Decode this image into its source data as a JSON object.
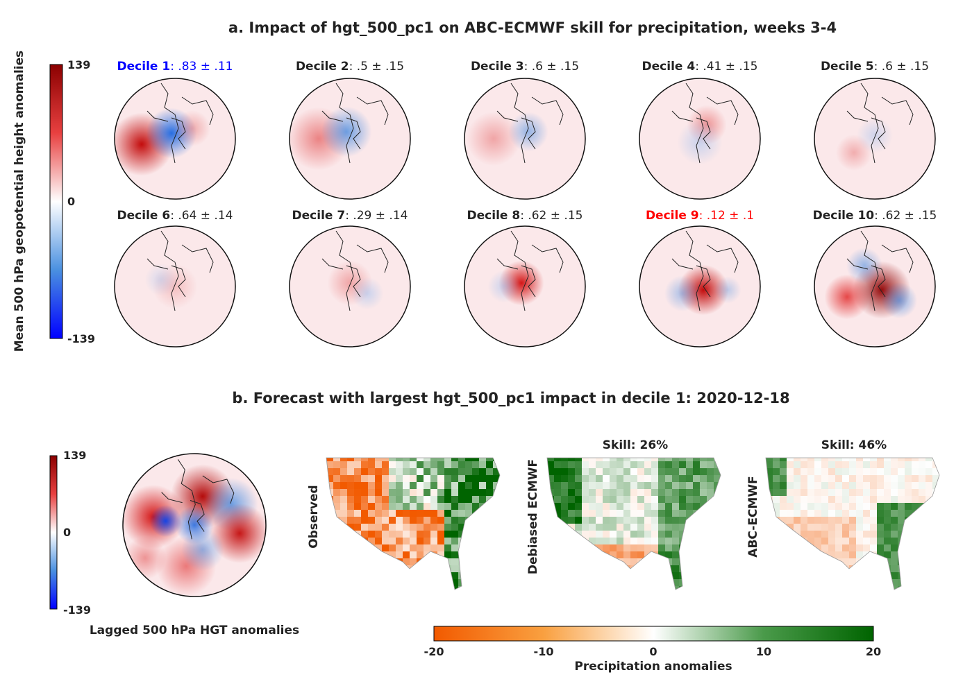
{
  "panel_a": {
    "title": "a. Impact of hgt_500_pc1 on ABC-ECMWF skill for precipitation, weeks 3-4",
    "colorbar": {
      "label": "Mean 500 hPa geopotential height anomalies",
      "ticks": [
        "139",
        "0",
        "-139"
      ]
    },
    "deciles": [
      {
        "name": "Decile 1",
        "value": ": .83 ± .11",
        "color": "#0000ff"
      },
      {
        "name": "Decile 2",
        "value": ": .5 ± .15",
        "color": "#222222"
      },
      {
        "name": "Decile 3",
        "value": ": .6 ± .15",
        "color": "#222222"
      },
      {
        "name": "Decile 4",
        "value": ": .41 ± .15",
        "color": "#222222"
      },
      {
        "name": "Decile 5",
        "value": ": .6 ± .15",
        "color": "#222222"
      },
      {
        "name": "Decile 6",
        "value": ": .64 ± .14",
        "color": "#222222"
      },
      {
        "name": "Decile 7",
        "value": ": .29 ± .14",
        "color": "#222222"
      },
      {
        "name": "Decile 8",
        "value": ": .62 ± .15",
        "color": "#222222"
      },
      {
        "name": "Decile 9",
        "value": ": .12 ± .1",
        "color": "#ff0000"
      },
      {
        "name": "Decile 10",
        "value": ": .62 ± .15",
        "color": "#222222"
      }
    ]
  },
  "panel_b": {
    "title": "b. Forecast with largest hgt_500_pc1 impact in decile 1: 2020-12-18",
    "hgt_colorbar": {
      "ticks": [
        "139",
        "0",
        "-139"
      ]
    },
    "hgt_caption": "Lagged 500 hPa HGT anomalies",
    "maps": [
      {
        "ylabel": "Observed",
        "skill": ""
      },
      {
        "ylabel": "Debiased ECMWF",
        "skill": "Skill: 26%"
      },
      {
        "ylabel": "ABC-ECMWF",
        "skill": "Skill: 46%"
      }
    ],
    "precip_colorbar": {
      "label": "Precipitation anomalies",
      "ticks": [
        "-20",
        "-10",
        "0",
        "10",
        "20"
      ]
    }
  },
  "chart_data": {
    "type": "heatmap",
    "hgt_colormap": {
      "min": -139,
      "max": 139,
      "colors": [
        "#0000ff",
        "#ffffff",
        "#8b0000"
      ]
    },
    "precip_colormap": {
      "min": -20,
      "max": 20,
      "colors": [
        "#f25a00",
        "#ffffff",
        "#006400"
      ]
    },
    "skill": {
      "Debiased ECMWF": 26,
      "ABC-ECMWF": 46
    },
    "decile_impact": [
      {
        "decile": 1,
        "mean": 0.83,
        "err": 0.11
      },
      {
        "decile": 2,
        "mean": 0.5,
        "err": 0.15
      },
      {
        "decile": 3,
        "mean": 0.6,
        "err": 0.15
      },
      {
        "decile": 4,
        "mean": 0.41,
        "err": 0.15
      },
      {
        "decile": 5,
        "mean": 0.6,
        "err": 0.15
      },
      {
        "decile": 6,
        "mean": 0.64,
        "err": 0.14
      },
      {
        "decile": 7,
        "mean": 0.29,
        "err": 0.14
      },
      {
        "decile": 8,
        "mean": 0.62,
        "err": 0.15
      },
      {
        "decile": 9,
        "mean": 0.12,
        "err": 0.1
      },
      {
        "decile": 10,
        "mean": 0.62,
        "err": 0.15
      }
    ]
  }
}
